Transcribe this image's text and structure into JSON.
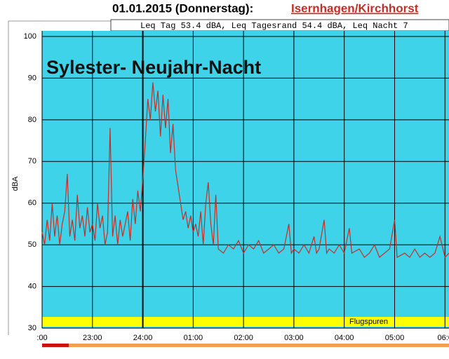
{
  "header": {
    "title": "01.01.2015 (Donnerstag):",
    "link": "Isernhagen/Kirchhorst"
  },
  "chart_data": {
    "type": "line",
    "info": "Leq Tag 53.4 dBA, Leq Tagesrand 54.4 dBA, Leq Nacht 7",
    "annotation": "Sylester- Neujahr-Nacht",
    "y_label": "dBA",
    "band_label": "Flugspuren",
    "color": "#c0302a",
    "background": "#3fd3ea",
    "grid": true,
    "xlim": [
      0,
      8.08
    ],
    "xticks": [
      {
        "value": 0,
        "label": ":00"
      },
      {
        "value": 1,
        "label": "23:00"
      },
      {
        "value": 2,
        "label": "24:00"
      },
      {
        "value": 3,
        "label": "01:00"
      },
      {
        "value": 4,
        "label": "02:00"
      },
      {
        "value": 5,
        "label": "03:00"
      },
      {
        "value": 6,
        "label": "04:00"
      },
      {
        "value": 7,
        "label": "05:00"
      },
      {
        "value": 8,
        "label": "06:0"
      }
    ],
    "ylim": [
      30,
      100
    ],
    "yticks": [
      30,
      40,
      50,
      60,
      70,
      80,
      90,
      100
    ],
    "x": [
      0,
      0.05,
      0.1,
      0.15,
      0.2,
      0.25,
      0.3,
      0.35,
      0.4,
      0.45,
      0.5,
      0.55,
      0.6,
      0.65,
      0.7,
      0.75,
      0.8,
      0.85,
      0.9,
      0.95,
      1.0,
      1.05,
      1.1,
      1.15,
      1.2,
      1.25,
      1.3,
      1.35,
      1.4,
      1.45,
      1.5,
      1.55,
      1.6,
      1.7,
      1.75,
      1.8,
      1.85,
      1.9,
      1.95,
      2.0,
      2.05,
      2.1,
      2.15,
      2.2,
      2.25,
      2.3,
      2.35,
      2.4,
      2.45,
      2.5,
      2.55,
      2.6,
      2.65,
      2.7,
      2.75,
      2.8,
      2.85,
      2.9,
      2.95,
      3.0,
      3.05,
      3.1,
      3.15,
      3.2,
      3.25,
      3.3,
      3.35,
      3.4,
      3.45,
      3.5,
      3.6,
      3.7,
      3.8,
      3.9,
      4.0,
      4.1,
      4.2,
      4.3,
      4.4,
      4.5,
      4.6,
      4.7,
      4.8,
      4.9,
      4.95,
      5.0,
      5.1,
      5.2,
      5.3,
      5.4,
      5.45,
      5.5,
      5.6,
      5.65,
      5.7,
      5.8,
      5.9,
      6.0,
      6.1,
      6.15,
      6.3,
      6.4,
      6.5,
      6.6,
      6.7,
      6.8,
      6.9,
      7.0,
      7.05,
      7.2,
      7.3,
      7.4,
      7.5,
      7.6,
      7.7,
      7.8,
      7.9,
      8.0,
      8.08
    ],
    "values": [
      53,
      50,
      56,
      51,
      60,
      52,
      57,
      50,
      55,
      58,
      67,
      52,
      56,
      51,
      62,
      54,
      57,
      52,
      59,
      53,
      55,
      51,
      60,
      54,
      57,
      50,
      53,
      78,
      52,
      57,
      50,
      56,
      52,
      58,
      51,
      61,
      55,
      63,
      58,
      66,
      75,
      85,
      80,
      89,
      82,
      87,
      76,
      86,
      78,
      85,
      72,
      79,
      68,
      64,
      60,
      56,
      58,
      54,
      57,
      53,
      55,
      52,
      58,
      50,
      60,
      65,
      55,
      50,
      62,
      49,
      48,
      50,
      49,
      51,
      48,
      50,
      49,
      51,
      48,
      49,
      50,
      48,
      49,
      55,
      48,
      49,
      48,
      50,
      48,
      52,
      48,
      49,
      56,
      48,
      49,
      48,
      50,
      48,
      54,
      48,
      49,
      47,
      48,
      50,
      47,
      48,
      49,
      56,
      47,
      48,
      47,
      49,
      47,
      48,
      47,
      48,
      52,
      47,
      48
    ]
  }
}
